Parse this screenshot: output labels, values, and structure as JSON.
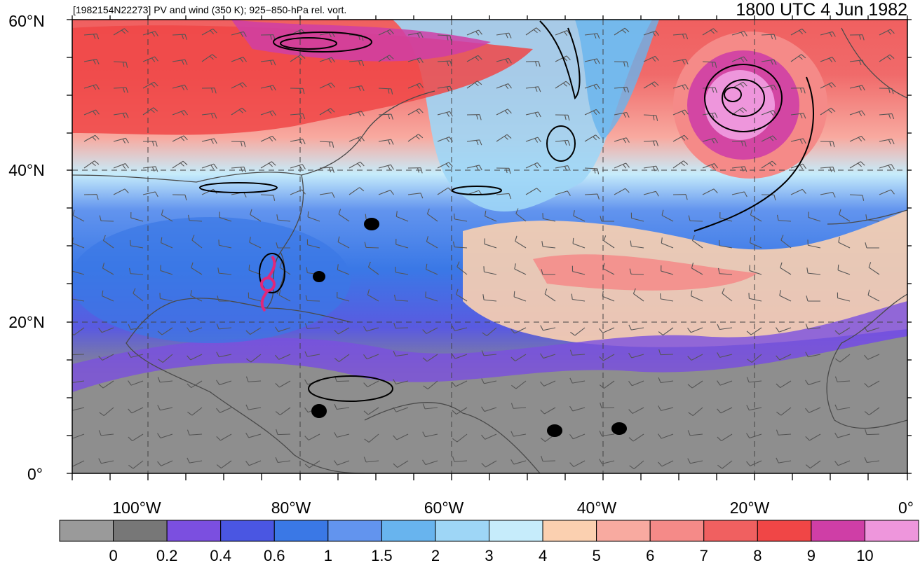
{
  "header": {
    "left_title": "[1982154N22273] PV and wind (350 K); 925−850-hPa rel. vort.",
    "right_title": "1800 UTC 4 Jun 1982"
  },
  "map": {
    "lat_labels": [
      "60°N",
      "40°N",
      "20°N",
      "0°"
    ],
    "lon_labels": [
      "100°W",
      "80°W",
      "60°W",
      "40°W",
      "20°W",
      "0°"
    ],
    "storm_icon": "tropical-cyclone-symbol",
    "storm_color": "#e0287a"
  },
  "colorbar": {
    "colors": [
      "#9a9a9a",
      "#777777",
      "#7b4fe0",
      "#4a56e2",
      "#3a78e6",
      "#6294ee",
      "#68b4ee",
      "#9ed6f6",
      "#c6ecfb",
      "#fbd0b0",
      "#f8aaa0",
      "#f58a88",
      "#f06060",
      "#f04646",
      "#cf3ea6",
      "#ee96dc"
    ],
    "tick_labels": [
      "0",
      "0.2",
      "0.4",
      "0.6",
      "1",
      "1.5",
      "2",
      "3",
      "4",
      "5",
      "6",
      "7",
      "8",
      "9",
      "10"
    ]
  }
}
